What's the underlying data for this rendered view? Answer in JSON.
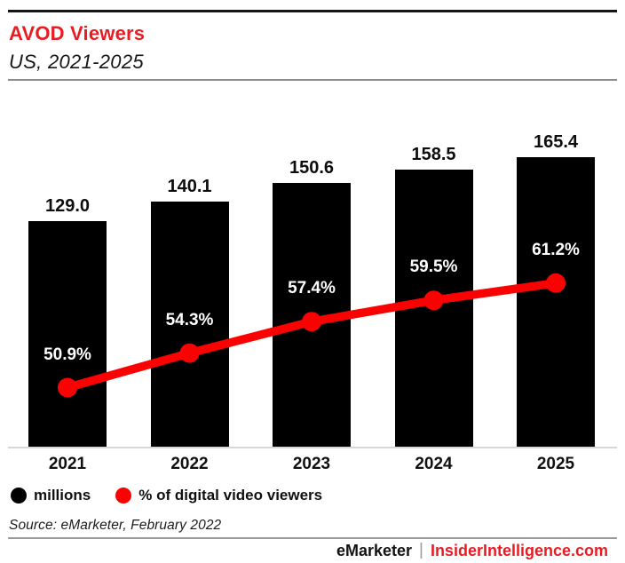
{
  "header": {
    "title": "AVOD Viewers",
    "subtitle": "US, 2021-2025"
  },
  "chart_data": {
    "type": "bar",
    "subtype": "bar-with-line-overlay",
    "title": "AVOD Viewers",
    "subtitle": "US, 2021-2025",
    "categories": [
      "2021",
      "2022",
      "2023",
      "2024",
      "2025"
    ],
    "series": [
      {
        "name": "millions",
        "type": "bar",
        "color": "#000000",
        "values": [
          129.0,
          140.1,
          150.6,
          158.5,
          165.4
        ],
        "labels": [
          "129.0",
          "140.1",
          "150.6",
          "158.5",
          "165.4"
        ]
      },
      {
        "name": "% of digital video viewers",
        "type": "line",
        "color": "#fa0202",
        "values": [
          50.9,
          54.3,
          57.4,
          59.5,
          61.2
        ],
        "labels": [
          "50.9%",
          "54.3%",
          "57.4%",
          "59.5%",
          "61.2%"
        ]
      }
    ],
    "bar_axis_min": 0,
    "grid": false,
    "legend_position": "bottom",
    "xlabel": "",
    "ylabel": ""
  },
  "legend": {
    "items": [
      {
        "label": "millions",
        "color": "#000000"
      },
      {
        "label": "% of digital video viewers",
        "color": "#fa0202"
      }
    ]
  },
  "footer": {
    "source": "Source: eMarketer, February 2022",
    "brand": "eMarketer",
    "separator": "|",
    "site": "InsiderIntelligence.com"
  },
  "colors": {
    "title_red": "#e81c22",
    "bar_black": "#000000",
    "line_red": "#fa0202",
    "axis_gray": "#d6d6d6",
    "rule_gray": "#9a9a9a"
  }
}
